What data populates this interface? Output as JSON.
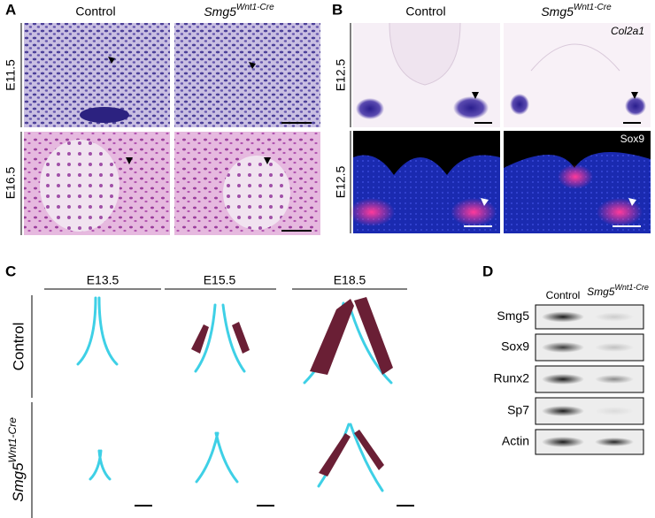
{
  "panel_a": {
    "letter": "A",
    "columns": [
      "Control",
      {
        "base": "Smg5",
        "sup": "Wnt1-Cre"
      }
    ],
    "rows": [
      "E11.5",
      "E16.5"
    ]
  },
  "panel_b": {
    "letter": "B",
    "columns": [
      "Control",
      {
        "base": "Smg5",
        "sup": "Wnt1-Cre"
      }
    ],
    "rows": [
      "E12.5",
      "E12.5"
    ],
    "stains": [
      "Col2a1",
      "Sox9"
    ]
  },
  "panel_c": {
    "letter": "C",
    "stages": [
      "E13.5",
      "E15.5",
      "E18.5"
    ],
    "rows": [
      "Control",
      {
        "base": "Smg5",
        "sup": "Wnt1-Cre"
      }
    ]
  },
  "panel_d": {
    "letter": "D",
    "columns": [
      "Control",
      {
        "base": "Smg5",
        "sup": "Wnt1-Cre"
      }
    ],
    "proteins": [
      "Smg5",
      "Sox9",
      "Runx2",
      "Sp7",
      "Actin"
    ]
  }
}
